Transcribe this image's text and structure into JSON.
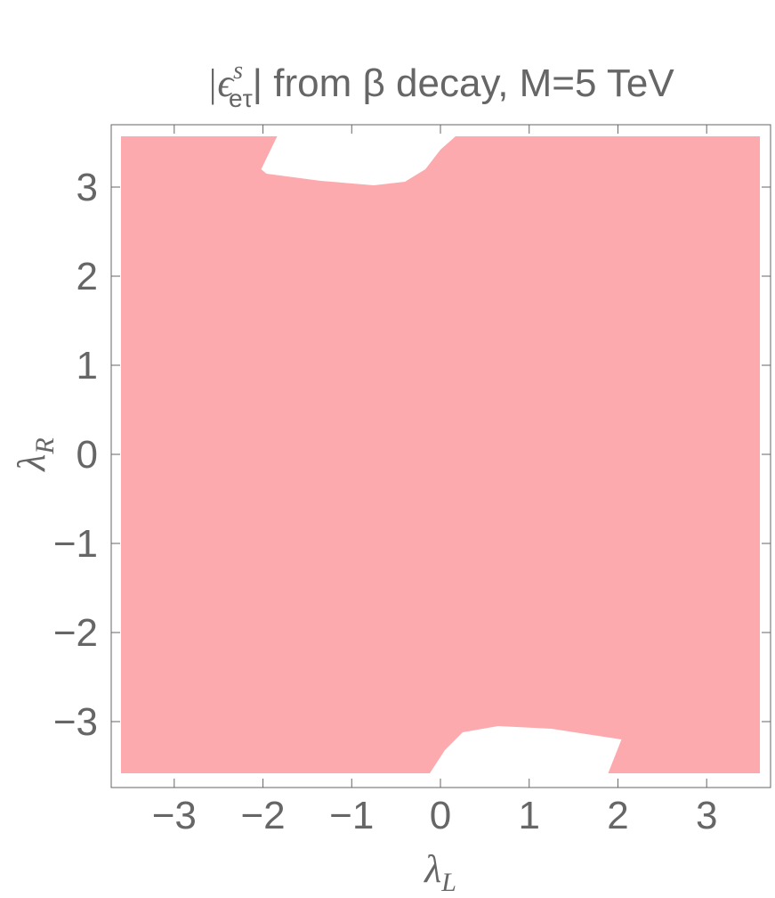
{
  "chart_data": {
    "type": "region",
    "title": {
      "open": "|ϵ",
      "sup": "s",
      "sub": "eτ",
      "rest": "| from β decay, M=5 TeV"
    },
    "xlabel": {
      "base": "λ",
      "sub": "L"
    },
    "ylabel": {
      "base": "λ",
      "sub": "R"
    },
    "xlim": [
      -3.71,
      3.72
    ],
    "ylim": [
      -3.74,
      3.7
    ],
    "xticks": [
      {
        "value": -3,
        "label": "−3"
      },
      {
        "value": -2,
        "label": "−2"
      },
      {
        "value": -1,
        "label": "−1"
      },
      0,
      1,
      2,
      3
    ],
    "yticks": [
      {
        "value": -3,
        "label": "−3"
      },
      {
        "value": -2,
        "label": "−2"
      },
      {
        "value": -1,
        "label": "−1"
      },
      0,
      1,
      2,
      3
    ],
    "color": "#fcaaad",
    "hole_color": "#ffffff",
    "region": {
      "x": [
        -3.6,
        3.6
      ],
      "y": [
        -3.58,
        3.57
      ]
    },
    "holes": [
      {
        "x": [
          -1.84,
          -2.02,
          -1.96,
          -1.35,
          -0.75,
          -0.4,
          -0.17,
          0,
          0.17
        ],
        "y": [
          3.57,
          3.2,
          3.15,
          3.07,
          3.02,
          3.06,
          3.2,
          3.42,
          3.57
        ]
      },
      {
        "x": [
          -0.12,
          0.05,
          0.25,
          0.65,
          1.25,
          2.04,
          1.89
        ],
        "y": [
          -3.58,
          -3.32,
          -3.12,
          -3.05,
          -3.08,
          -3.2,
          -3.58
        ]
      }
    ]
  }
}
